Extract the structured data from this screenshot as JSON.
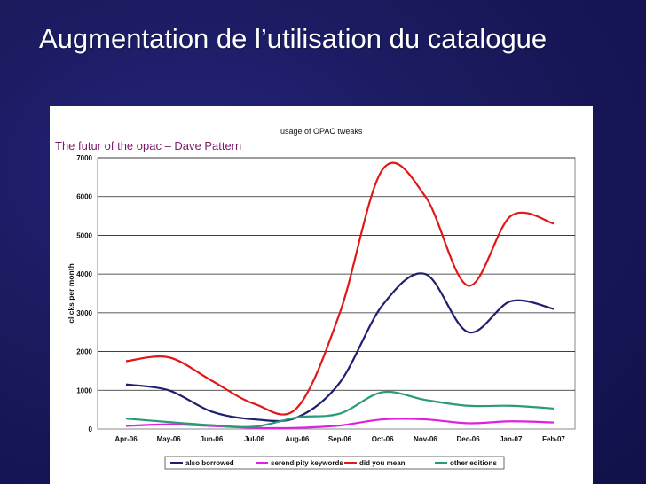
{
  "slide": {
    "title": "Augmentation de l’utilisation du catalogue",
    "caption": "The futur of the opac – Dave Pattern"
  },
  "chart_data": {
    "type": "line",
    "title": "usage of OPAC tweaks",
    "xlabel": "",
    "ylabel": "clicks per month",
    "ylim": [
      0,
      7000
    ],
    "yticks": [
      0,
      1000,
      2000,
      3000,
      4000,
      5000,
      6000,
      7000
    ],
    "grid": true,
    "legend_position": "bottom",
    "categories": [
      "Apr-06",
      "May-06",
      "Jun-06",
      "Jul-06",
      "Aug-06",
      "Sep-06",
      "Oct-06",
      "Nov-06",
      "Dec-06",
      "Jan-07",
      "Feb-07"
    ],
    "series": [
      {
        "name": "also borrowed",
        "color": "#1f1f6e",
        "values": [
          1150,
          1000,
          450,
          250,
          300,
          1200,
          3200,
          4000,
          2500,
          3300,
          3100
        ]
      },
      {
        "name": "serendipity keywords",
        "color": "#e020e0",
        "values": [
          80,
          120,
          80,
          30,
          30,
          90,
          250,
          250,
          150,
          200,
          170
        ]
      },
      {
        "name": "did you mean",
        "color": "#e01818",
        "values": [
          1750,
          1850,
          1250,
          650,
          550,
          3000,
          6700,
          6000,
          3700,
          5500,
          5300
        ]
      },
      {
        "name": "other editions",
        "color": "#2a9a78",
        "values": [
          270,
          180,
          100,
          60,
          300,
          400,
          950,
          750,
          600,
          600,
          530
        ]
      }
    ]
  }
}
